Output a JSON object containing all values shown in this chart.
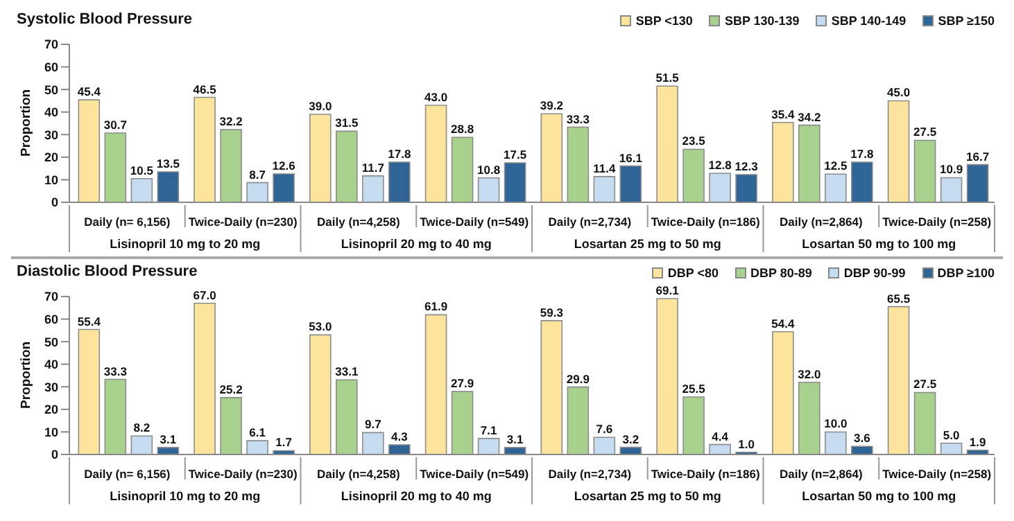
{
  "chart_data": [
    {
      "type": "bar",
      "title": "Systolic Blood Pressure",
      "ylabel": "Proportion",
      "categories": [
        "Daily (n= 6,156)",
        "Twice-Daily (n=230)",
        "Daily (n=4,258)",
        "Twice-Daily (n=549)",
        "Daily (n=2,734)",
        "Twice-Daily (n=186)",
        "Daily (n=2,864)",
        "Twice-Daily (n=258)"
      ],
      "series": [
        {
          "name": "SBP <130",
          "color": "#fde49c",
          "values": [
            45.4,
            46.5,
            39.0,
            43.0,
            39.2,
            51.5,
            35.4,
            45.0
          ],
          "value_labels": [
            "45.4",
            "46.5",
            "39.0",
            "43.0",
            "39.2",
            "51.5",
            "35.4",
            "45.0"
          ]
        },
        {
          "name": "SBP 130-139",
          "color": "#a9d18e",
          "values": [
            30.7,
            32.2,
            31.5,
            28.8,
            33.3,
            23.5,
            34.2,
            27.5
          ],
          "value_labels": [
            "30.7",
            "32.2",
            "31.5",
            "28.8",
            "33.3",
            "23.5",
            "34.2",
            "27.5"
          ]
        },
        {
          "name": "SBP 140-149",
          "color": "#c5dcf0",
          "values": [
            10.5,
            8.7,
            11.7,
            10.8,
            11.4,
            12.8,
            12.5,
            10.9
          ],
          "value_labels": [
            "10.5",
            "8.7",
            "11.7",
            "10.8",
            "11.4",
            "12.8",
            "12.5",
            "10.9"
          ]
        },
        {
          "name": "SBP ≥150",
          "color": "#2f6496",
          "values": [
            13.5,
            12.6,
            17.8,
            17.5,
            16.1,
            12.3,
            17.8,
            16.7
          ],
          "value_labels": [
            "13.5",
            "12.6",
            "17.8",
            "17.5",
            "16.1",
            "12.3",
            "17.8",
            "16.7"
          ]
        }
      ],
      "annotations": [
        "Lisinopril 10 mg to 20 mg",
        "Lisinopril 20 mg to 40 mg",
        "Losartan 25 mg to 50 mg",
        "Losartan 50 mg to 100 mg"
      ],
      "ylim": [
        0,
        70
      ],
      "yticks": [
        0,
        10,
        20,
        30,
        40,
        50,
        60,
        70
      ],
      "legend": "top right",
      "grid": false
    },
    {
      "type": "bar",
      "title": "Diastolic Blood Pressure",
      "ylabel": "Proportion",
      "categories": [
        "Daily (n= 6,156)",
        "Twice-Daily (n=230)",
        "Daily (n=4,258)",
        "Twice-Daily (n=549)",
        "Daily (n=2,734)",
        "Twice-Daily (n=186)",
        "Daily (n=2,864)",
        "Twice-Daily (n=258)"
      ],
      "series": [
        {
          "name": "DBP <80",
          "color": "#fde49c",
          "values": [
            55.4,
            67.0,
            53.0,
            61.9,
            59.3,
            69.1,
            54.4,
            65.5
          ],
          "value_labels": [
            "55.4",
            "67.0",
            "53.0",
            "61.9",
            "59.3",
            "69.1",
            "54.4",
            "65.5"
          ]
        },
        {
          "name": "DBP 80-89",
          "color": "#a9d18e",
          "values": [
            33.3,
            25.2,
            33.1,
            27.9,
            29.9,
            25.5,
            32.0,
            27.5
          ],
          "value_labels": [
            "33.3",
            "25.2",
            "33.1",
            "27.9",
            "29.9",
            "25.5",
            "32.0",
            "27.5"
          ]
        },
        {
          "name": "DBP 90-99",
          "color": "#c5dcf0",
          "values": [
            8.2,
            6.1,
            9.7,
            7.1,
            7.6,
            4.4,
            10.0,
            5.0
          ],
          "value_labels": [
            "8.2",
            "6.1",
            "9.7",
            "7.1",
            "7.6",
            "4.4",
            "10.0",
            "5.0"
          ]
        },
        {
          "name": "DBP ≥100",
          "color": "#2f6496",
          "values": [
            3.1,
            1.7,
            4.3,
            3.1,
            3.2,
            1.0,
            3.6,
            1.9
          ],
          "value_labels": [
            "3.1",
            "1.7",
            "4.3",
            "3.1",
            "3.2",
            "1.0",
            "3.6",
            "1.9"
          ]
        }
      ],
      "annotations": [
        "Lisinopril 10 mg to 20 mg",
        "Lisinopril 20 mg to 40 mg",
        "Losartan 25 mg to 50 mg",
        "Losartan 50 mg to 100 mg"
      ],
      "ylim": [
        0,
        70
      ],
      "yticks": [
        0,
        10,
        20,
        30,
        40,
        50,
        60,
        70
      ],
      "legend": "top right",
      "grid": false
    }
  ]
}
